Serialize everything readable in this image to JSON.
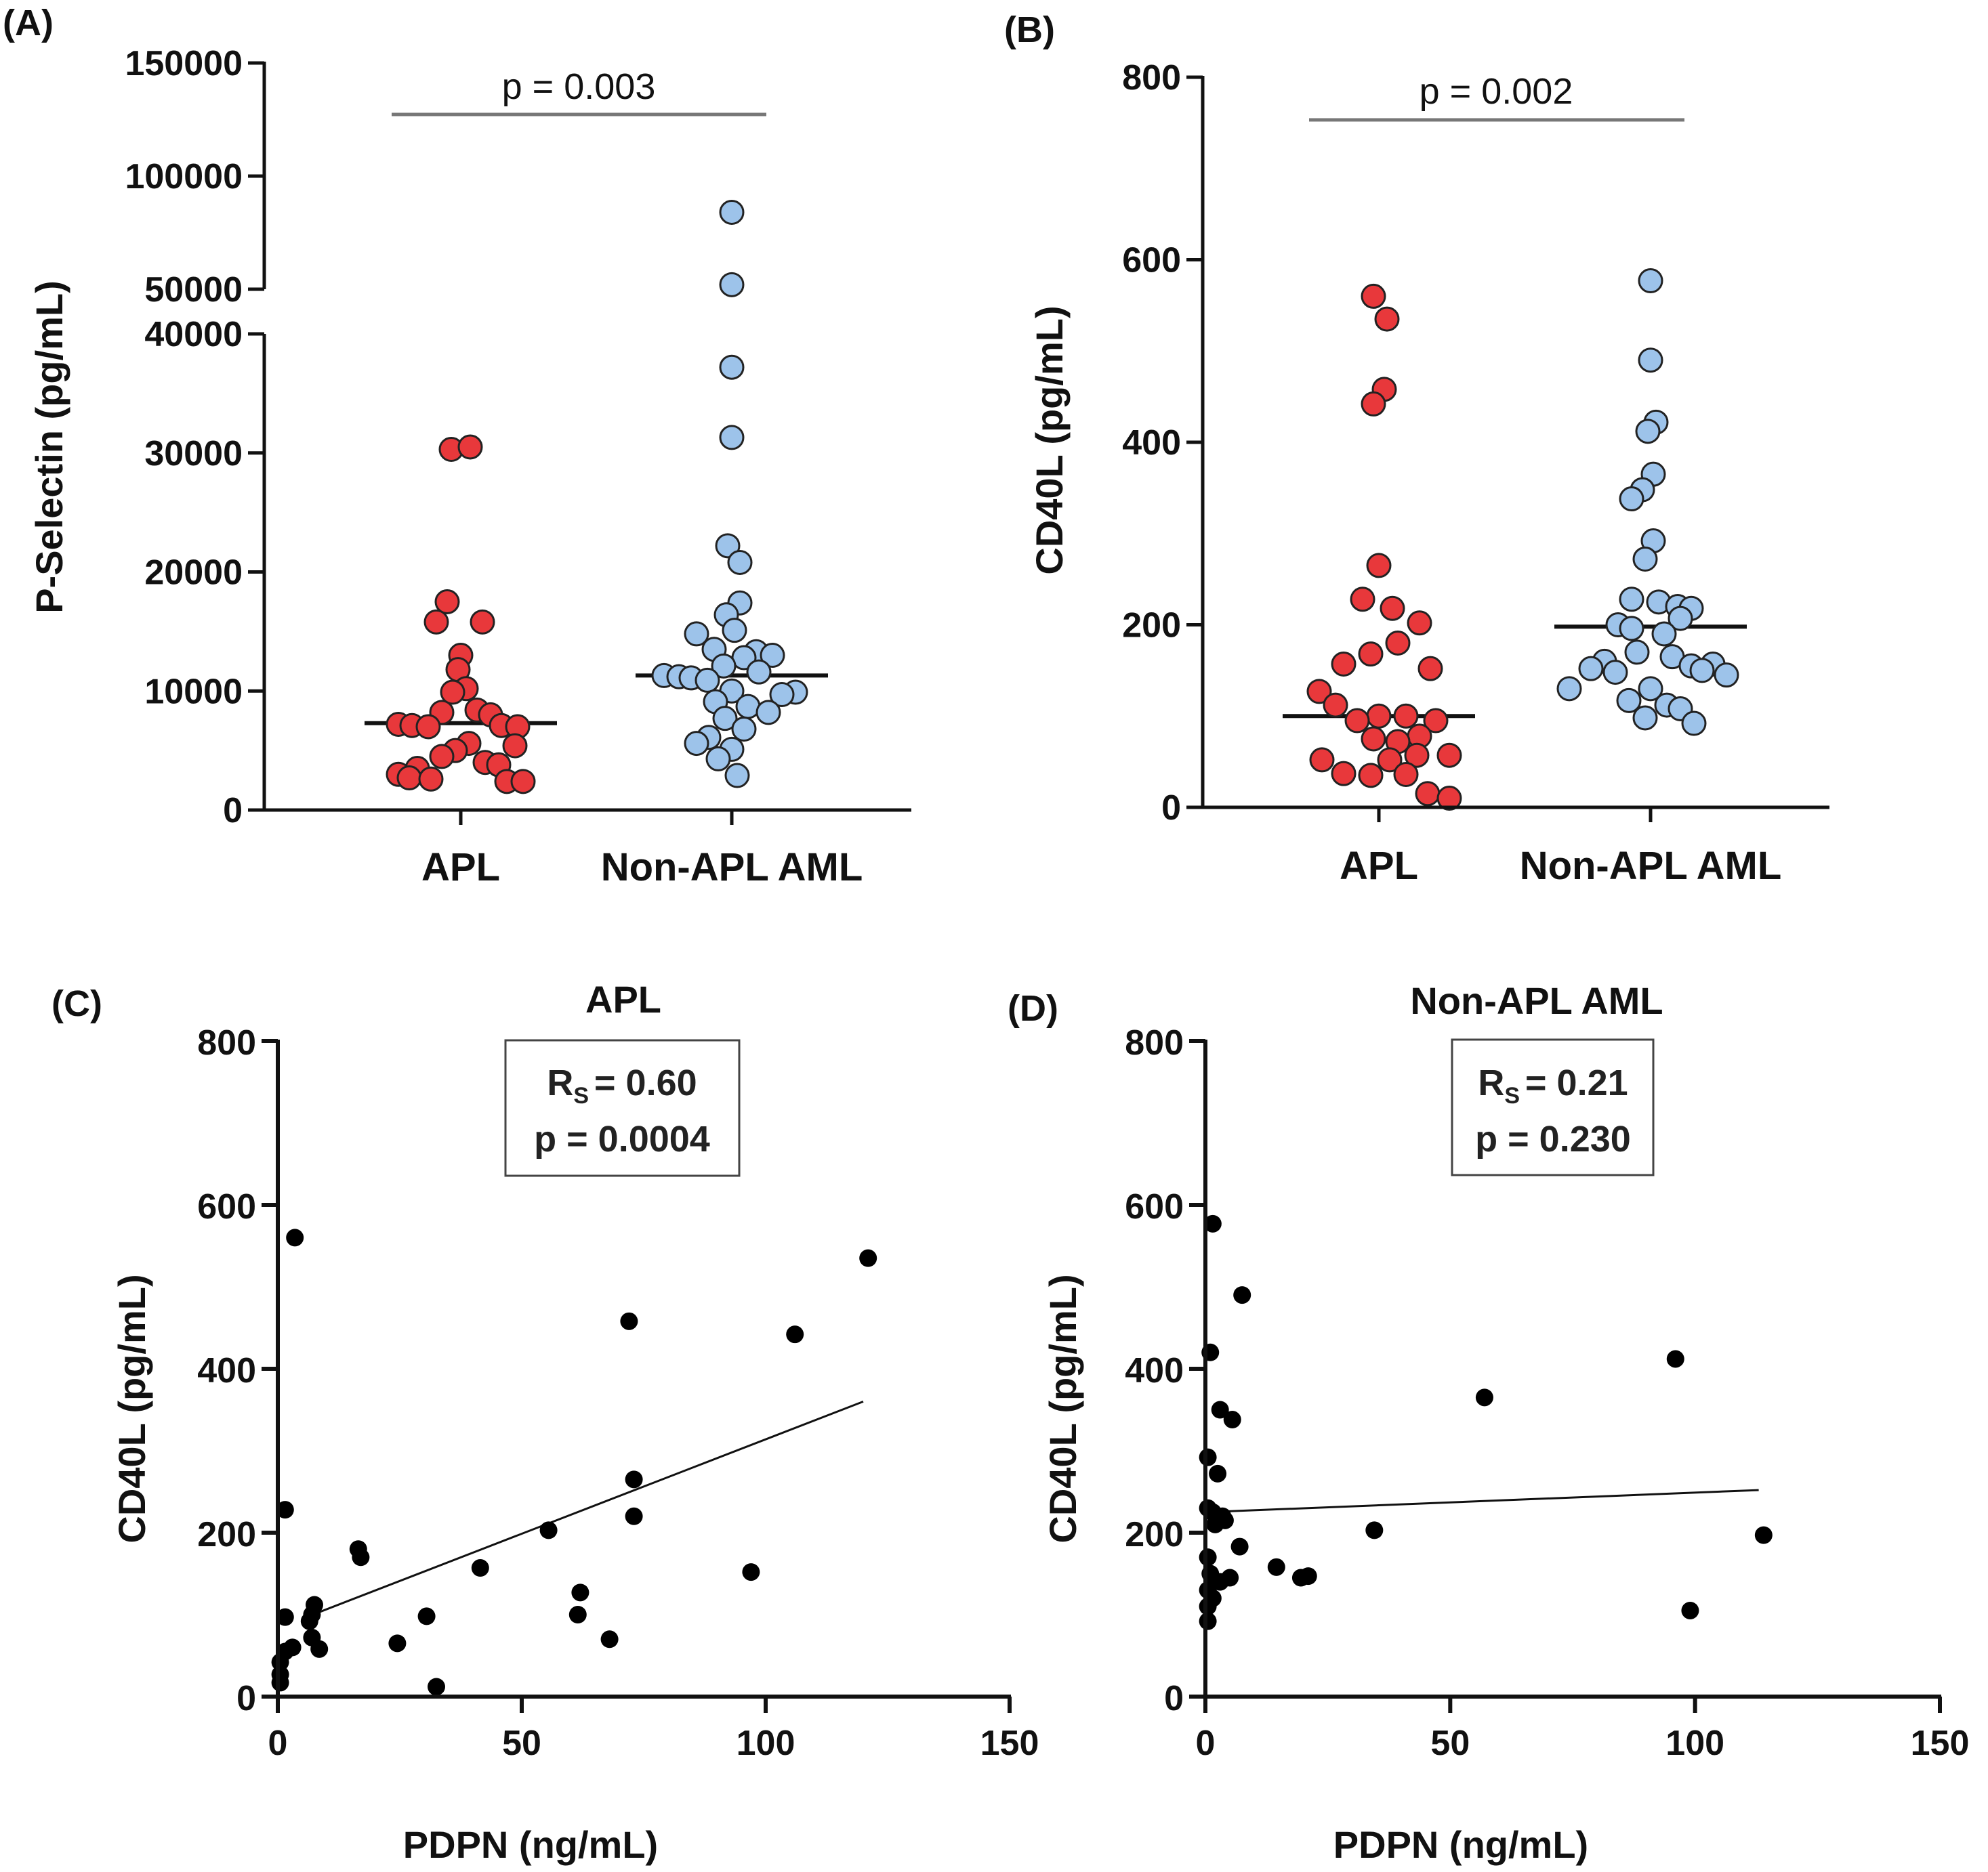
{
  "chart_data": [
    {
      "id": "A",
      "type": "scatter",
      "panel_label": "(A)",
      "ylabel": "P-Selectin (pg/mL)",
      "categories": [
        "APL",
        "Non-APL AML"
      ],
      "y_axis_break": {
        "lower_range": [
          0,
          40000
        ],
        "upper_range": [
          40000,
          150000
        ]
      },
      "yticks": [
        0,
        10000,
        20000,
        30000,
        40000,
        50000,
        100000,
        150000
      ],
      "ytick_labels": [
        "0",
        "10000",
        "20000",
        "30000",
        "40000",
        "50000",
        "100000",
        "150000"
      ],
      "comparison": {
        "text": "p = 0.003"
      },
      "series": [
        {
          "name": "APL",
          "color": "#e8383b",
          "median": 7300,
          "points": [
            {
              "dx": -0.07,
              "y": 30300
            },
            {
              "dx": 0.07,
              "y": 30500
            },
            {
              "dx": -0.1,
              "y": 17500
            },
            {
              "dx": -0.18,
              "y": 15800
            },
            {
              "dx": 0.16,
              "y": 15800
            },
            {
              "dx": 0.0,
              "y": 13000
            },
            {
              "dx": -0.02,
              "y": 11800
            },
            {
              "dx": 0.04,
              "y": 10200
            },
            {
              "dx": -0.06,
              "y": 9900
            },
            {
              "dx": 0.12,
              "y": 8400
            },
            {
              "dx": -0.14,
              "y": 8200
            },
            {
              "dx": 0.22,
              "y": 8000
            },
            {
              "dx": -0.46,
              "y": 7200
            },
            {
              "dx": -0.36,
              "y": 7100
            },
            {
              "dx": -0.24,
              "y": 7000
            },
            {
              "dx": 0.3,
              "y": 7100
            },
            {
              "dx": 0.42,
              "y": 7000
            },
            {
              "dx": 0.06,
              "y": 5600
            },
            {
              "dx": -0.04,
              "y": 5000
            },
            {
              "dx": 0.4,
              "y": 5400
            },
            {
              "dx": -0.14,
              "y": 4500
            },
            {
              "dx": 0.18,
              "y": 4000
            },
            {
              "dx": -0.32,
              "y": 3500
            },
            {
              "dx": 0.28,
              "y": 3800
            },
            {
              "dx": -0.46,
              "y": 3000
            },
            {
              "dx": -0.38,
              "y": 2700
            },
            {
              "dx": -0.22,
              "y": 2600
            },
            {
              "dx": 0.34,
              "y": 2400
            },
            {
              "dx": 0.46,
              "y": 2400
            }
          ]
        },
        {
          "name": "Non-APL AML",
          "color": "#9dc3ea",
          "median": 11300,
          "points": [
            {
              "dx": 0.0,
              "y": 84000
            },
            {
              "dx": 0.0,
              "y": 52000
            },
            {
              "dx": 0.0,
              "y": 37200
            },
            {
              "dx": 0.0,
              "y": 31300
            },
            {
              "dx": -0.03,
              "y": 22200
            },
            {
              "dx": 0.06,
              "y": 20800
            },
            {
              "dx": 0.06,
              "y": 17400
            },
            {
              "dx": -0.04,
              "y": 16400
            },
            {
              "dx": 0.02,
              "y": 15100
            },
            {
              "dx": -0.26,
              "y": 14800
            },
            {
              "dx": -0.13,
              "y": 13500
            },
            {
              "dx": 0.18,
              "y": 13300
            },
            {
              "dx": 0.3,
              "y": 13000
            },
            {
              "dx": 0.09,
              "y": 12800
            },
            {
              "dx": -0.06,
              "y": 12100
            },
            {
              "dx": -0.5,
              "y": 11300
            },
            {
              "dx": -0.39,
              "y": 11200
            },
            {
              "dx": -0.3,
              "y": 11100
            },
            {
              "dx": -0.18,
              "y": 10900
            },
            {
              "dx": 0.2,
              "y": 11600
            },
            {
              "dx": 0.47,
              "y": 9900
            },
            {
              "dx": 0.37,
              "y": 9700
            },
            {
              "dx": 0.0,
              "y": 10000
            },
            {
              "dx": -0.12,
              "y": 9100
            },
            {
              "dx": 0.12,
              "y": 8700
            },
            {
              "dx": 0.27,
              "y": 8200
            },
            {
              "dx": -0.05,
              "y": 7700
            },
            {
              "dx": 0.09,
              "y": 6800
            },
            {
              "dx": -0.17,
              "y": 6100
            },
            {
              "dx": -0.26,
              "y": 5600
            },
            {
              "dx": 0.0,
              "y": 5100
            },
            {
              "dx": -0.1,
              "y": 4300
            },
            {
              "dx": 0.04,
              "y": 2900
            }
          ]
        }
      ]
    },
    {
      "id": "B",
      "type": "scatter",
      "panel_label": "(B)",
      "ylabel": "CD40L (pg/mL)",
      "categories": [
        "APL",
        "Non-APL AML"
      ],
      "ylim": [
        0,
        800
      ],
      "yticks": [
        0,
        200,
        400,
        600,
        800
      ],
      "ytick_labels": [
        "0",
        "200",
        "400",
        "600",
        "800"
      ],
      "comparison": {
        "text": "p = 0.002"
      },
      "series": [
        {
          "name": "APL",
          "color": "#e8383b",
          "median": 100,
          "points": [
            {
              "dx": -0.04,
              "y": 560
            },
            {
              "dx": 0.06,
              "y": 535
            },
            {
              "dx": 0.04,
              "y": 458
            },
            {
              "dx": -0.04,
              "y": 442
            },
            {
              "dx": 0.0,
              "y": 265
            },
            {
              "dx": -0.12,
              "y": 228
            },
            {
              "dx": 0.1,
              "y": 218
            },
            {
              "dx": 0.3,
              "y": 202
            },
            {
              "dx": 0.14,
              "y": 180
            },
            {
              "dx": -0.06,
              "y": 168
            },
            {
              "dx": -0.26,
              "y": 157
            },
            {
              "dx": 0.38,
              "y": 152
            },
            {
              "dx": -0.44,
              "y": 127
            },
            {
              "dx": -0.32,
              "y": 112
            },
            {
              "dx": 0.0,
              "y": 100
            },
            {
              "dx": 0.2,
              "y": 100
            },
            {
              "dx": -0.16,
              "y": 95
            },
            {
              "dx": 0.42,
              "y": 95
            },
            {
              "dx": 0.3,
              "y": 78
            },
            {
              "dx": -0.04,
              "y": 75
            },
            {
              "dx": 0.14,
              "y": 72
            },
            {
              "dx": -0.42,
              "y": 52
            },
            {
              "dx": 0.08,
              "y": 52
            },
            {
              "dx": 0.28,
              "y": 57
            },
            {
              "dx": 0.52,
              "y": 57
            },
            {
              "dx": -0.26,
              "y": 37
            },
            {
              "dx": -0.06,
              "y": 35
            },
            {
              "dx": 0.2,
              "y": 36
            },
            {
              "dx": 0.36,
              "y": 15
            },
            {
              "dx": 0.52,
              "y": 10
            }
          ]
        },
        {
          "name": "Non-APL AML",
          "color": "#9dc3ea",
          "median": 198,
          "points": [
            {
              "dx": 0.0,
              "y": 577
            },
            {
              "dx": 0.0,
              "y": 490
            },
            {
              "dx": 0.04,
              "y": 422
            },
            {
              "dx": -0.02,
              "y": 412
            },
            {
              "dx": 0.02,
              "y": 365
            },
            {
              "dx": -0.06,
              "y": 348
            },
            {
              "dx": -0.14,
              "y": 338
            },
            {
              "dx": 0.02,
              "y": 292
            },
            {
              "dx": -0.04,
              "y": 272
            },
            {
              "dx": -0.14,
              "y": 228
            },
            {
              "dx": 0.06,
              "y": 225
            },
            {
              "dx": 0.2,
              "y": 220
            },
            {
              "dx": 0.3,
              "y": 218
            },
            {
              "dx": -0.24,
              "y": 200
            },
            {
              "dx": -0.14,
              "y": 196
            },
            {
              "dx": 0.22,
              "y": 207
            },
            {
              "dx": 0.1,
              "y": 190
            },
            {
              "dx": -0.1,
              "y": 170
            },
            {
              "dx": 0.16,
              "y": 165
            },
            {
              "dx": -0.34,
              "y": 160
            },
            {
              "dx": -0.44,
              "y": 152
            },
            {
              "dx": 0.3,
              "y": 155
            },
            {
              "dx": 0.46,
              "y": 157
            },
            {
              "dx": 0.56,
              "y": 145
            },
            {
              "dx": 0.38,
              "y": 150
            },
            {
              "dx": -0.26,
              "y": 148
            },
            {
              "dx": -0.6,
              "y": 130
            },
            {
              "dx": 0.0,
              "y": 130
            },
            {
              "dx": -0.16,
              "y": 117
            },
            {
              "dx": 0.12,
              "y": 112
            },
            {
              "dx": 0.22,
              "y": 108
            },
            {
              "dx": -0.04,
              "y": 98
            },
            {
              "dx": 0.32,
              "y": 92
            }
          ]
        }
      ]
    },
    {
      "id": "C",
      "type": "scatter",
      "panel_label": "(C)",
      "title": "APL",
      "xlabel": "PDPN (ng/mL)",
      "ylabel": "CD40L (pg/mL)",
      "xlim": [
        0,
        150
      ],
      "ylim": [
        0,
        800
      ],
      "xticks": [
        0,
        50,
        100,
        150
      ],
      "yticks": [
        0,
        200,
        400,
        600,
        800
      ],
      "xtick_labels": [
        "0",
        "50",
        "100",
        "150"
      ],
      "ytick_labels": [
        "0",
        "200",
        "400",
        "600",
        "800"
      ],
      "stats": {
        "rs_symbol": "R",
        "rs_sub": "S",
        "rs_value": "= 0.60",
        "p_text": "p = 0.0004"
      },
      "fit_line": {
        "x": [
          5,
          120
        ],
        "y": [
          95,
          360
        ]
      },
      "points": [
        [
          3.5,
          560
        ],
        [
          121,
          535
        ],
        [
          72,
          458
        ],
        [
          106,
          442
        ],
        [
          73,
          265
        ],
        [
          1.5,
          228
        ],
        [
          73,
          220
        ],
        [
          16.5,
          180
        ],
        [
          17,
          170
        ],
        [
          55.5,
          203
        ],
        [
          41.5,
          157
        ],
        [
          97,
          152
        ],
        [
          62,
          127
        ],
        [
          61.5,
          100
        ],
        [
          30.5,
          98
        ],
        [
          7.5,
          112
        ],
        [
          7,
          100
        ],
        [
          6.5,
          92
        ],
        [
          7,
          72
        ],
        [
          8.5,
          58
        ],
        [
          68,
          70
        ],
        [
          24.5,
          65
        ],
        [
          32.5,
          12
        ],
        [
          1.5,
          97
        ],
        [
          3,
          60
        ],
        [
          1.5,
          55
        ],
        [
          0.5,
          42
        ],
        [
          0.5,
          27
        ],
        [
          0.5,
          17
        ]
      ]
    },
    {
      "id": "D",
      "type": "scatter",
      "panel_label": "(D)",
      "title": "Non-APL AML",
      "xlabel": "PDPN (ng/mL)",
      "ylabel": "CD40L (pg/mL)",
      "xlim": [
        0,
        150
      ],
      "ylim": [
        0,
        800
      ],
      "xticks": [
        0,
        50,
        100,
        150
      ],
      "yticks": [
        0,
        200,
        400,
        600,
        800
      ],
      "xtick_labels": [
        "0",
        "50",
        "100",
        "150"
      ],
      "ytick_labels": [
        "0",
        "200",
        "400",
        "600",
        "800"
      ],
      "stats": {
        "rs_symbol": "R",
        "rs_sub": "S",
        "rs_value": "= 0.21",
        "p_text": "p = 0.230"
      },
      "fit_line": {
        "x": [
          0,
          113
        ],
        "y": [
          225,
          252
        ]
      },
      "points": [
        [
          1.5,
          577
        ],
        [
          7.5,
          490
        ],
        [
          1,
          420
        ],
        [
          96,
          412
        ],
        [
          57,
          365
        ],
        [
          3,
          350
        ],
        [
          5.5,
          338
        ],
        [
          0.5,
          292
        ],
        [
          2.5,
          272
        ],
        [
          0.5,
          230
        ],
        [
          1.5,
          225
        ],
        [
          3.5,
          220
        ],
        [
          4,
          215
        ],
        [
          2,
          210
        ],
        [
          34.5,
          203
        ],
        [
          114,
          197
        ],
        [
          7,
          183
        ],
        [
          0.5,
          170
        ],
        [
          14.5,
          158
        ],
        [
          1,
          150
        ],
        [
          21,
          147
        ],
        [
          19.5,
          145
        ],
        [
          5,
          145
        ],
        [
          3,
          140
        ],
        [
          0.5,
          130
        ],
        [
          1.5,
          120
        ],
        [
          0.5,
          110
        ],
        [
          99,
          105
        ],
        [
          0.5,
          92
        ]
      ]
    }
  ]
}
